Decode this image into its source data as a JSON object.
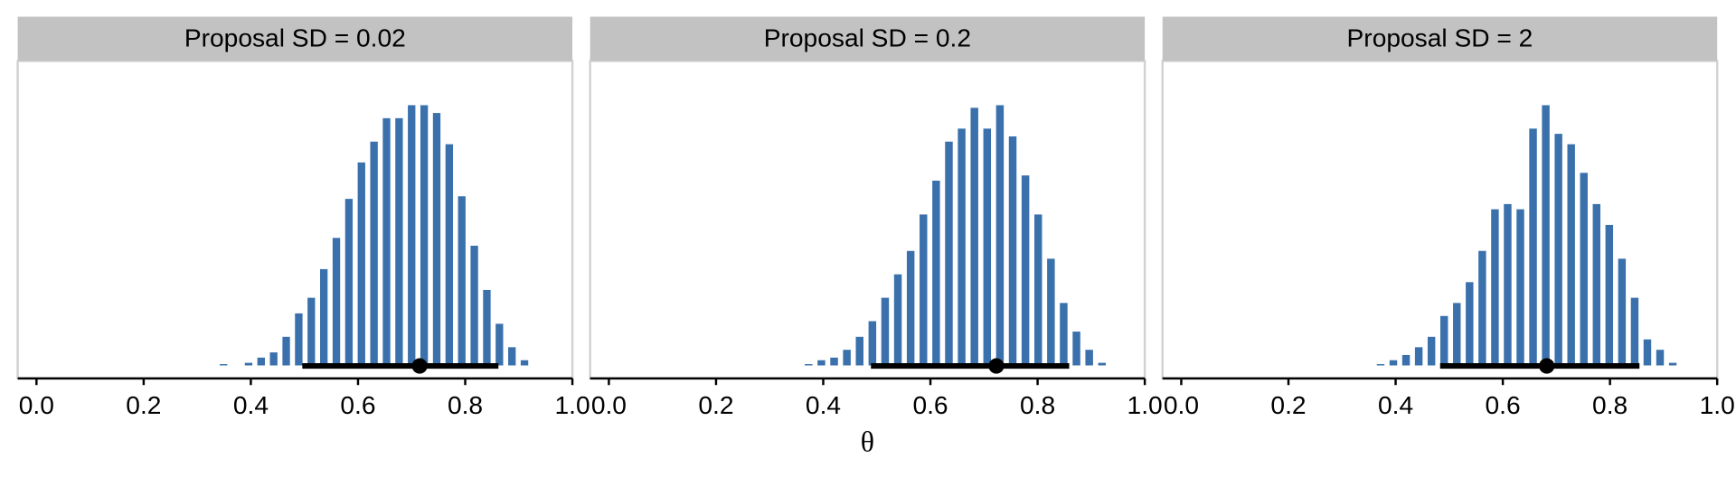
{
  "chart_data": [
    {
      "type": "histogram",
      "title": "Proposal SD = 0.02",
      "color": "#3a70ab",
      "bins": [
        0.3373,
        0.3607,
        0.3841,
        0.4075,
        0.4309,
        0.4543,
        0.4777,
        0.5011,
        0.5245,
        0.5479,
        0.5713,
        0.5947,
        0.6181,
        0.6415,
        0.6649,
        0.6883,
        0.7117,
        0.7351,
        0.7585,
        0.7819,
        0.8053,
        0.8287,
        0.8521,
        0.8755,
        0.8989,
        0.9223
      ],
      "values": [
        0.5,
        0,
        1,
        3,
        5,
        11,
        20,
        26,
        37,
        49,
        64,
        78,
        86,
        95,
        95,
        100,
        100,
        97,
        85,
        65,
        46,
        29,
        16,
        7,
        2
      ],
      "interval": {
        "low": 0.496,
        "high": 0.862,
        "point": 0.715
      },
      "xlim": [
        -0.035,
        1.0
      ],
      "ylim": [
        -5,
        117
      ],
      "xticks": [
        {
          "value": 0,
          "label": "0.0"
        },
        {
          "value": 0.2,
          "label": "0.2"
        },
        {
          "value": 0.4,
          "label": "0.4"
        },
        {
          "value": 0.6,
          "label": "0.6"
        },
        {
          "value": 0.8,
          "label": "0.8"
        },
        {
          "value": 1.0,
          "label": "1.0"
        }
      ]
    },
    {
      "type": "histogram",
      "title": "Proposal SD = 0.2",
      "color": "#3a70ab",
      "xlabel": "θ",
      "bins": [
        0.3608,
        0.3846,
        0.4084,
        0.4322,
        0.456,
        0.4798,
        0.5036,
        0.5274,
        0.5512,
        0.575,
        0.5988,
        0.6226,
        0.6464,
        0.6702,
        0.694,
        0.7178,
        0.7416,
        0.7654,
        0.7892,
        0.813,
        0.8368,
        0.8606,
        0.8844,
        0.9082,
        0.932
      ],
      "values": [
        0.5,
        2,
        3,
        6,
        11,
        17,
        26,
        35,
        44,
        58,
        71,
        86,
        91,
        99,
        91,
        100,
        88,
        73,
        58,
        41,
        24,
        13,
        6,
        1
      ],
      "interval": {
        "low": 0.489,
        "high": 0.859,
        "point": 0.723
      },
      "xlim": [
        -0.035,
        1.0
      ],
      "ylim": [
        -5,
        117
      ],
      "xticks": [
        {
          "value": 0,
          "label": "0.0"
        },
        {
          "value": 0.2,
          "label": "0.2"
        },
        {
          "value": 0.4,
          "label": "0.4"
        },
        {
          "value": 0.6,
          "label": "0.6"
        },
        {
          "value": 0.8,
          "label": "0.8"
        },
        {
          "value": 1.0,
          "label": "1.0"
        }
      ]
    },
    {
      "type": "histogram",
      "title": "Proposal SD = 2",
      "color": "#3a70ab",
      "bins": [
        0.3602,
        0.3839,
        0.4076,
        0.4313,
        0.455,
        0.4787,
        0.5024,
        0.5261,
        0.5498,
        0.5735,
        0.5972,
        0.6209,
        0.6446,
        0.6683,
        0.692,
        0.7157,
        0.7394,
        0.7631,
        0.7868,
        0.8105,
        0.8342,
        0.8579,
        0.8816,
        0.9053,
        0.929
      ],
      "values": [
        0.5,
        2,
        4,
        7,
        11,
        19,
        24,
        32,
        44,
        60,
        62,
        60,
        91,
        100,
        89,
        85,
        74,
        62,
        54,
        41,
        26,
        10,
        6,
        1
      ],
      "interval": {
        "low": 0.483,
        "high": 0.855,
        "point": 0.682
      },
      "xlim": [
        -0.035,
        1.0
      ],
      "ylim": [
        -5,
        117
      ],
      "xticks": [
        {
          "value": 0,
          "label": "0.0"
        },
        {
          "value": 0.2,
          "label": "0.2"
        },
        {
          "value": 0.4,
          "label": "0.4"
        },
        {
          "value": 0.6,
          "label": "0.6"
        },
        {
          "value": 0.8,
          "label": "0.8"
        },
        {
          "value": 1.0,
          "label": "1.0"
        }
      ]
    }
  ]
}
